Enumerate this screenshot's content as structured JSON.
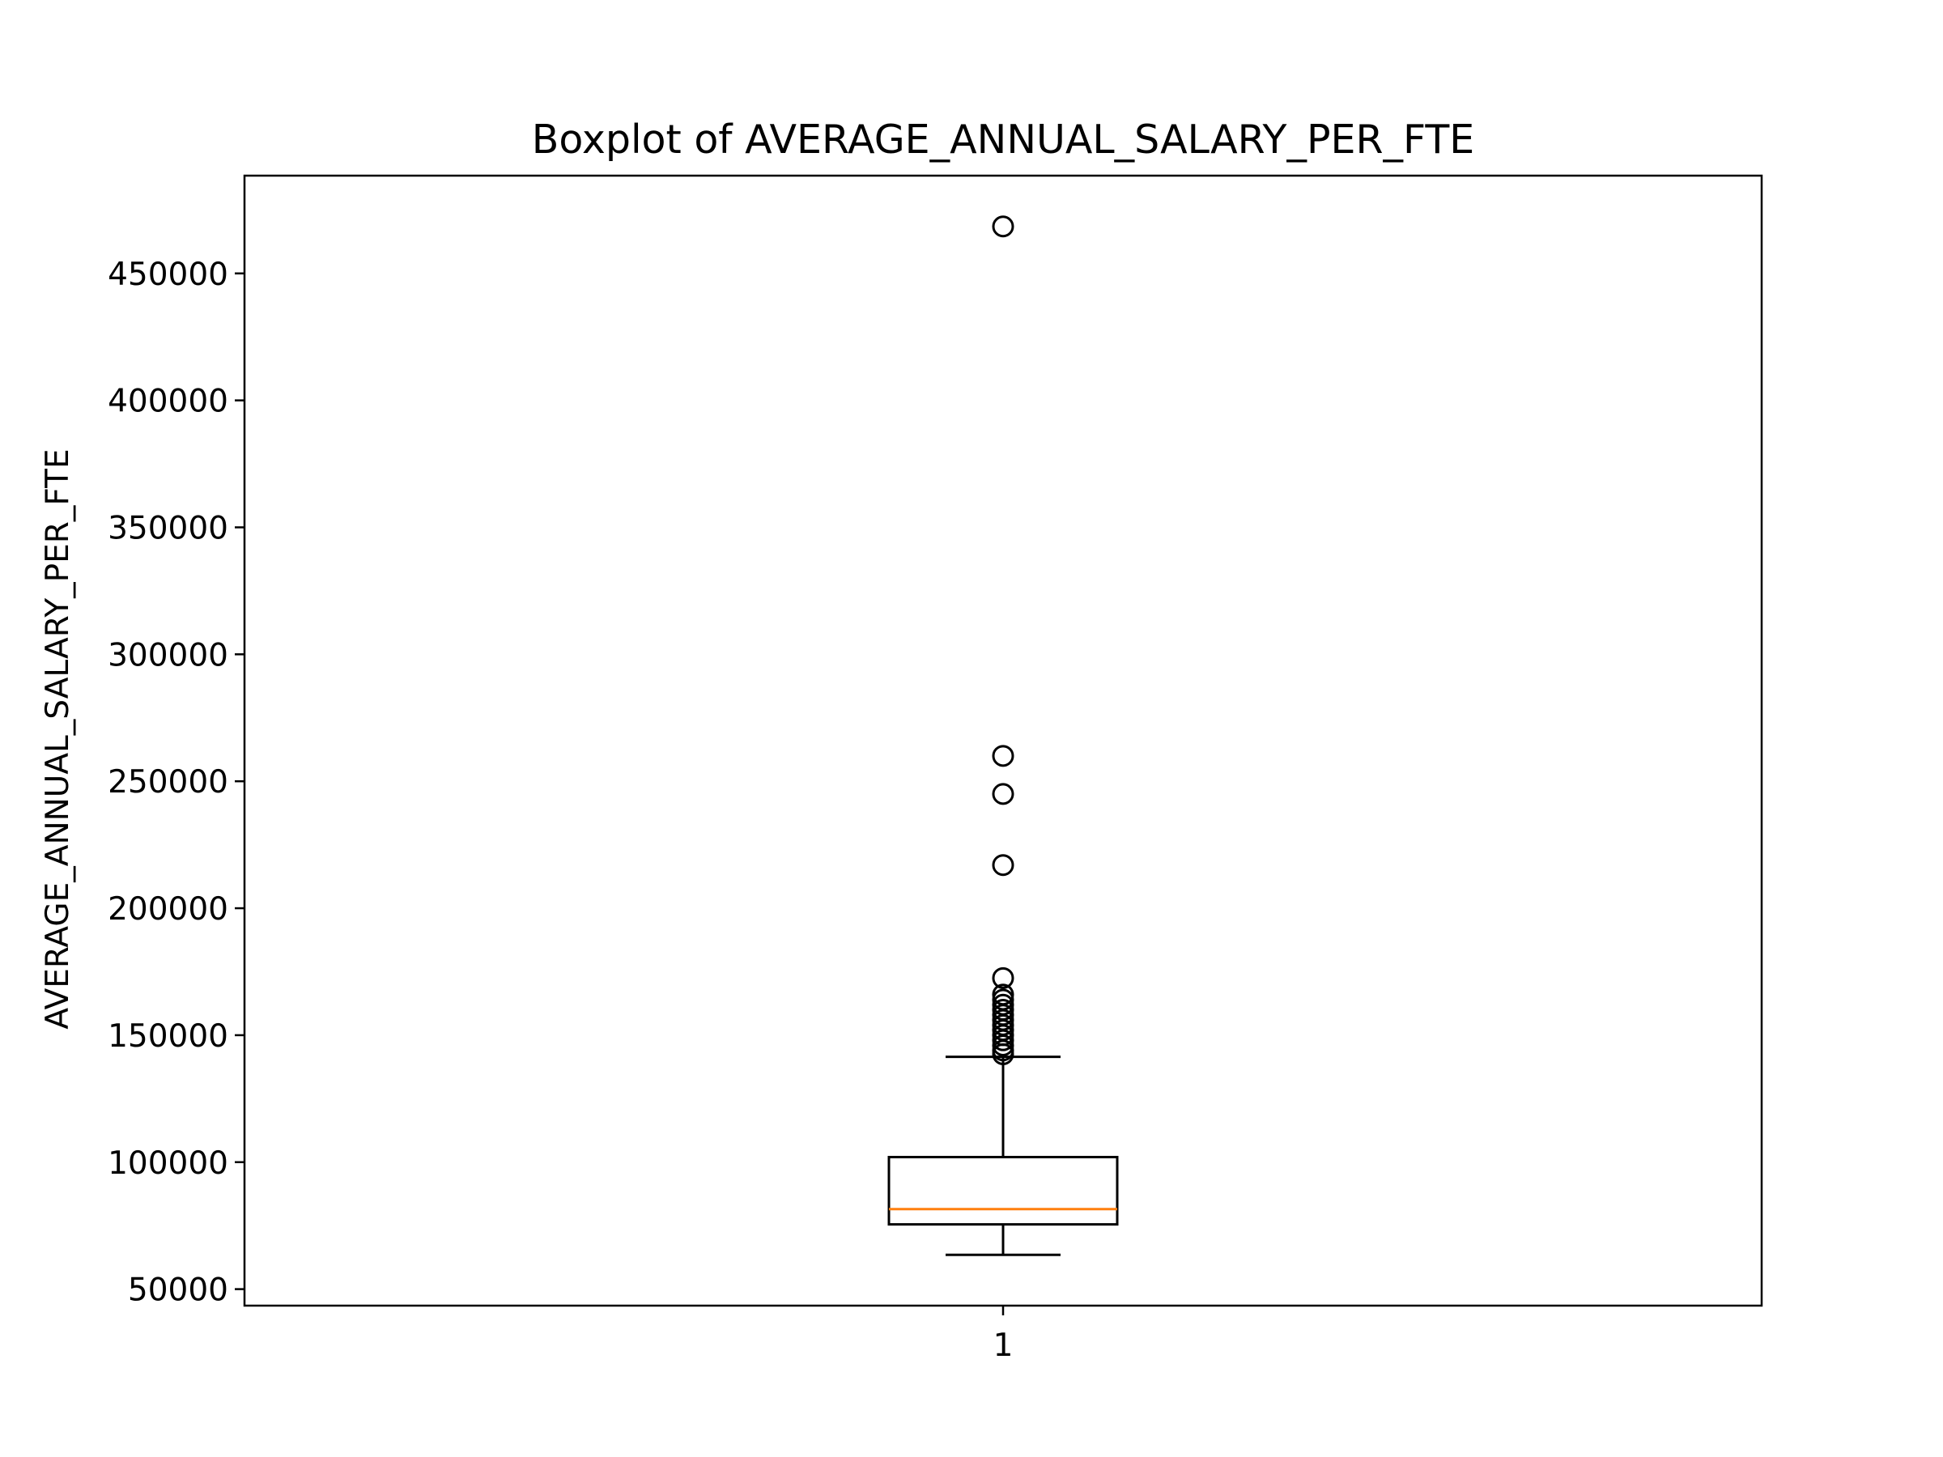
{
  "chart_data": {
    "type": "boxplot",
    "title": "Boxplot of AVERAGE_ANNUAL_SALARY_PER_FTE",
    "xlabel": "",
    "ylabel": "AVERAGE_ANNUAL_SALARY_PER_FTE",
    "categories": [
      "1"
    ],
    "yticks": [
      50000,
      100000,
      150000,
      200000,
      250000,
      300000,
      350000,
      400000,
      450000
    ],
    "ytick_labels": [
      "50000",
      "100000",
      "150000",
      "200000",
      "250000",
      "300000",
      "350000",
      "400000",
      "450000"
    ],
    "ylim": [
      43500,
      488500
    ],
    "grid": false,
    "boxes": [
      {
        "category": "1",
        "whisker_low": 63500,
        "q1": 75500,
        "median": 81500,
        "q3": 102000,
        "whisker_high": 141500,
        "outliers": [
          142500,
          144000,
          146000,
          148000,
          150000,
          152000,
          154000,
          156000,
          158000,
          160000,
          162000,
          164000,
          166000,
          172500,
          217000,
          245000,
          260000,
          468500
        ]
      }
    ],
    "colors": {
      "box": "#000000",
      "median": "#ff7f0e",
      "whisker": "#000000",
      "outlier_edge": "#000000"
    }
  }
}
